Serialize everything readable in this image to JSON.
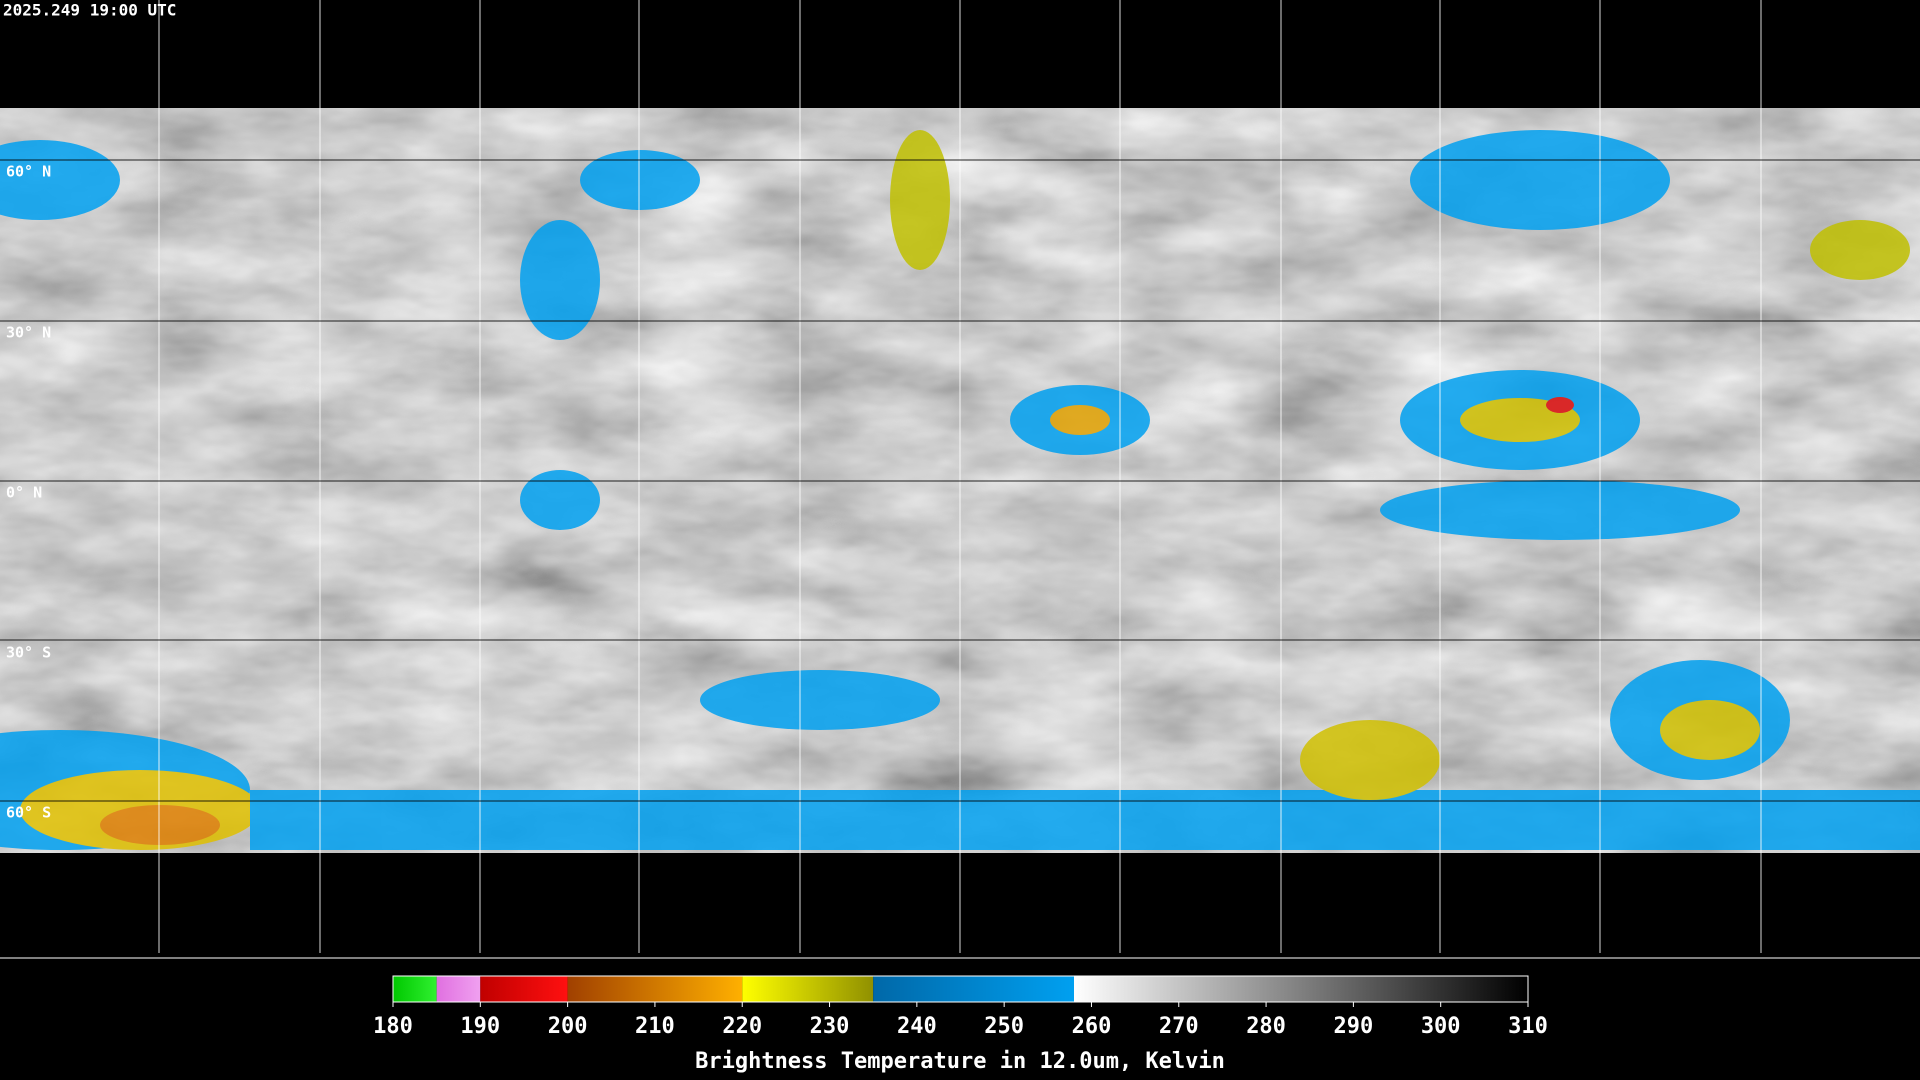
{
  "timestamp": "2025.249 19:00 UTC",
  "lat_labels": [
    "60° N",
    "30° N",
    "0° N",
    "30° S",
    "60° S"
  ],
  "colorbar": {
    "title": "Brightness Temperature in 12.0um, Kelvin",
    "lim": [
      180,
      310
    ],
    "ticks": [
      180,
      190,
      200,
      210,
      220,
      230,
      240,
      250,
      260,
      270,
      280,
      290,
      300,
      310
    ],
    "bands": [
      {
        "from": 180,
        "to": 185,
        "colors": [
          "#00c800",
          "#30f030"
        ]
      },
      {
        "from": 185,
        "to": 190,
        "colors": [
          "#e070e0",
          "#f0a0f0"
        ]
      },
      {
        "from": 190,
        "to": 200,
        "colors": [
          "#c00000",
          "#ff1010"
        ]
      },
      {
        "from": 200,
        "to": 220,
        "colors": [
          "#a04000",
          "#ffb000"
        ]
      },
      {
        "from": 220,
        "to": 235,
        "colors": [
          "#ffff00",
          "#909000"
        ]
      },
      {
        "from": 235,
        "to": 258,
        "colors": [
          "#0068a8",
          "#00a0f0"
        ]
      },
      {
        "from": 258,
        "to": 310,
        "colors": [
          "#ffffff",
          "#000000"
        ]
      }
    ]
  }
}
